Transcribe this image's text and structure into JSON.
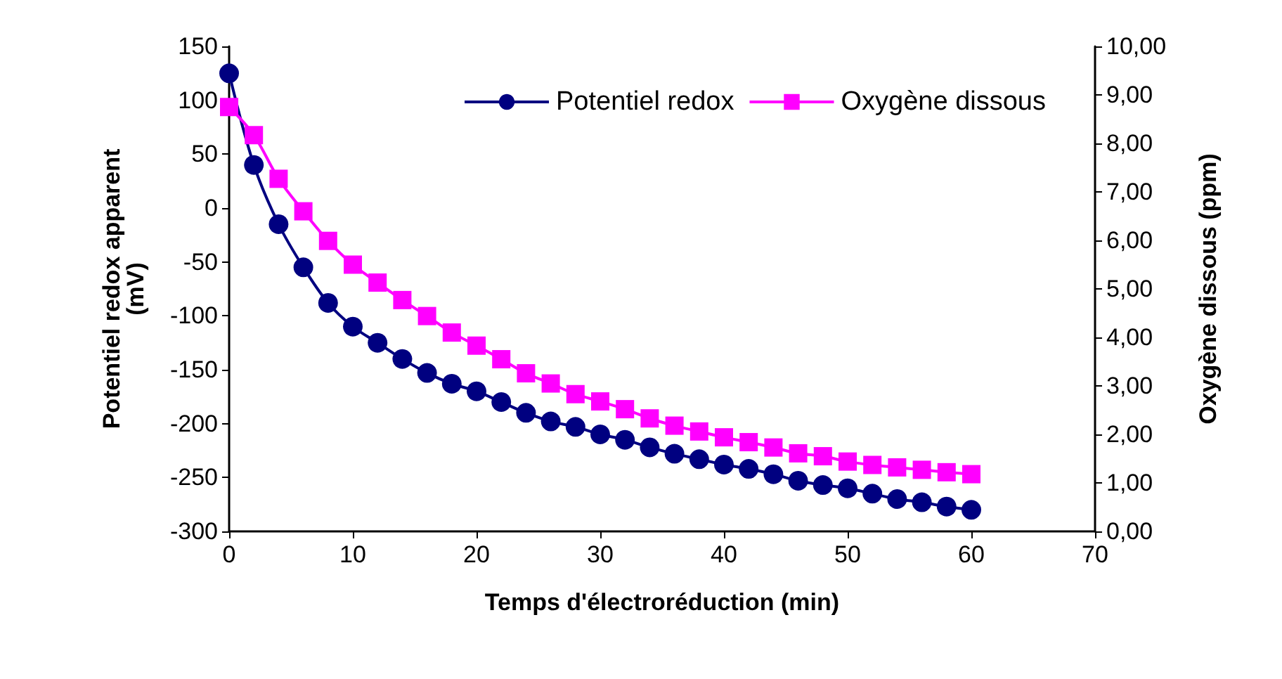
{
  "chart_data": {
    "type": "line",
    "xlabel": "Temps d'électroréduction (min)",
    "ylabel": "Potentiel redox apparent (mV)",
    "y2label": "Oxygène dissous (ppm)",
    "x": [
      0,
      2,
      4,
      6,
      8,
      10,
      12,
      14,
      16,
      18,
      20,
      22,
      24,
      26,
      28,
      30,
      32,
      34,
      36,
      38,
      40,
      42,
      44,
      46,
      48,
      50,
      52,
      54,
      56,
      58,
      60
    ],
    "series": [
      {
        "name": "Potentiel redox",
        "color": "#000080",
        "marker": "circle",
        "values": [
          125,
          40,
          -15,
          -55,
          -88,
          -110,
          -125,
          -140,
          -153,
          -163,
          -170,
          -180,
          -190,
          -198,
          -203,
          -210,
          -215,
          -222,
          -228,
          -233,
          -238,
          -242,
          -247,
          -253,
          -257,
          -260,
          -265,
          -270,
          -273,
          -277,
          -280
        ]
      },
      {
        "name": "Oxygène dissous",
        "color": "#ff00ff",
        "marker": "square",
        "axis": "y2",
        "values": [
          8.75,
          8.17,
          7.27,
          6.6,
          5.99,
          5.5,
          5.13,
          4.77,
          4.44,
          4.1,
          3.83,
          3.55,
          3.26,
          3.05,
          2.83,
          2.68,
          2.52,
          2.33,
          2.18,
          2.06,
          1.94,
          1.84,
          1.73,
          1.61,
          1.55,
          1.44,
          1.37,
          1.32,
          1.27,
          1.22,
          1.18
        ]
      }
    ],
    "xlim": [
      0,
      70
    ],
    "xticks": [
      0,
      10,
      20,
      30,
      40,
      50,
      60,
      70
    ],
    "ylim": [
      -300,
      150
    ],
    "yticks": [
      -300,
      -250,
      -200,
      -150,
      -100,
      -50,
      0,
      50,
      100,
      150
    ],
    "y2lim": [
      0,
      10
    ],
    "y2ticks": [
      {
        "value": 0,
        "label": "0,00"
      },
      {
        "value": 1,
        "label": "1,00"
      },
      {
        "value": 2,
        "label": "2,00"
      },
      {
        "value": 3,
        "label": "3,00"
      },
      {
        "value": 4,
        "label": "4,00"
      },
      {
        "value": 5,
        "label": "5,00"
      },
      {
        "value": 6,
        "label": "6,00"
      },
      {
        "value": 7,
        "label": "7,00"
      },
      {
        "value": 8,
        "label": "8,00"
      },
      {
        "value": 9,
        "label": "9,00"
      },
      {
        "value": 10,
        "label": "10,00"
      }
    ],
    "grid": false,
    "legend": "top right",
    "line_style": "solid"
  }
}
